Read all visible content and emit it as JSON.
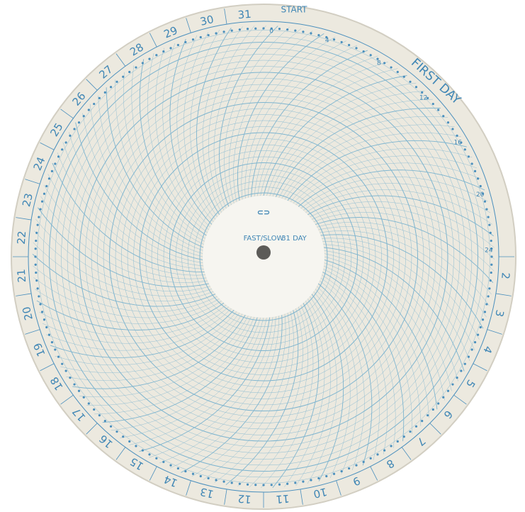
{
  "disc": {
    "first_day": "FIRST DAY",
    "start": "START",
    "days": [
      2,
      3,
      4,
      5,
      6,
      7,
      8,
      9,
      10,
      11,
      12,
      13,
      14,
      15,
      16,
      17,
      18,
      19,
      20,
      21,
      22,
      23,
      24,
      25,
      26,
      27,
      28,
      29,
      30,
      31
    ],
    "hours": [
      0,
      4,
      8,
      12,
      16,
      20,
      24
    ]
  },
  "hub": {
    "mode": "FAST/SLOW",
    "span": "31 DAY"
  }
}
